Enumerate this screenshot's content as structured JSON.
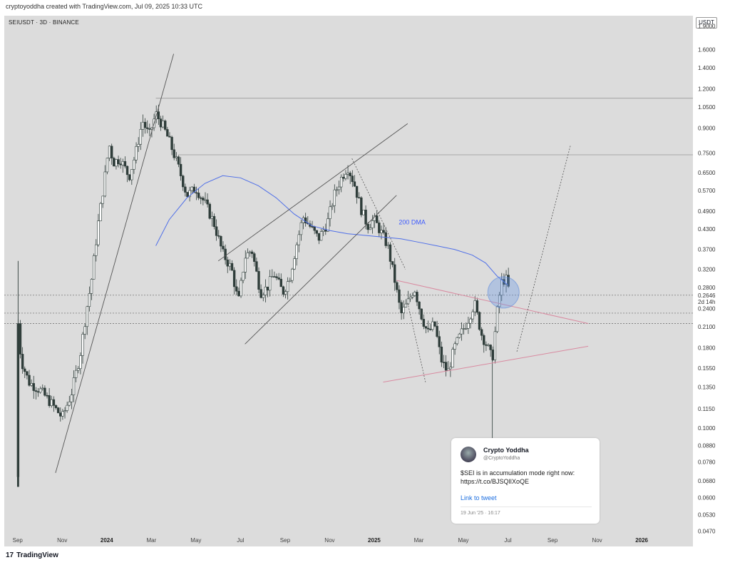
{
  "header": {
    "created_by": "cryptoyoddha created with TradingView.com, Jul 09, 2025 10:33 UTC",
    "symbol": "SEIUSDT · 3D · BINANCE",
    "currency_button": "USDT"
  },
  "footer": {
    "logo_text": "17",
    "brand": "TradingView"
  },
  "chart_data": {
    "type": "candlestick",
    "title": "",
    "y_scale": "log",
    "ylim": [
      0.042,
      2.05
    ],
    "y_ticks": [
      {
        "v": 1.9,
        "label": "1.9000"
      },
      {
        "v": 1.6,
        "label": "1.6000"
      },
      {
        "v": 1.4,
        "label": "1.4000"
      },
      {
        "v": 1.2,
        "label": "1.2000"
      },
      {
        "v": 1.05,
        "label": "1.0500"
      },
      {
        "v": 0.9,
        "label": "0.9000"
      },
      {
        "v": 0.75,
        "label": "0.7500"
      },
      {
        "v": 0.65,
        "label": "0.6500"
      },
      {
        "v": 0.57,
        "label": "0.5700"
      },
      {
        "v": 0.49,
        "label": "0.4900"
      },
      {
        "v": 0.43,
        "label": "0.4300"
      },
      {
        "v": 0.37,
        "label": "0.3700"
      },
      {
        "v": 0.32,
        "label": "0.3200"
      },
      {
        "v": 0.28,
        "label": "0.2800"
      },
      {
        "v": 0.2646,
        "label": "0.2646"
      },
      {
        "v": 0.24,
        "label": "0.2400"
      },
      {
        "v": 0.21,
        "label": "0.2100"
      },
      {
        "v": 0.18,
        "label": "0.1800"
      },
      {
        "v": 0.155,
        "label": "0.1550"
      },
      {
        "v": 0.135,
        "label": "0.1350"
      },
      {
        "v": 0.115,
        "label": "0.1150"
      },
      {
        "v": 0.1,
        "label": "0.1000"
      },
      {
        "v": 0.088,
        "label": "0.0880"
      },
      {
        "v": 0.078,
        "label": "0.0780"
      },
      {
        "v": 0.068,
        "label": "0.0680"
      },
      {
        "v": 0.06,
        "label": "0.0600"
      },
      {
        "v": 0.053,
        "label": "0.0530"
      },
      {
        "v": 0.047,
        "label": "0.0470"
      }
    ],
    "current_price": "0.2646",
    "countdown": "2d 14h",
    "x_ticks": [
      {
        "label": "Sep",
        "m": 0,
        "bold": false
      },
      {
        "label": "Nov",
        "m": 2,
        "bold": false
      },
      {
        "label": "2024",
        "m": 4,
        "bold": true
      },
      {
        "label": "Mar",
        "m": 6,
        "bold": false
      },
      {
        "label": "May",
        "m": 8,
        "bold": false
      },
      {
        "label": "Jul",
        "m": 10,
        "bold": false
      },
      {
        "label": "Sep",
        "m": 12,
        "bold": false
      },
      {
        "label": "Nov",
        "m": 14,
        "bold": false
      },
      {
        "label": "2025",
        "m": 16,
        "bold": true
      },
      {
        "label": "Mar",
        "m": 18,
        "bold": false
      },
      {
        "label": "May",
        "m": 20,
        "bold": false
      },
      {
        "label": "Jul",
        "m": 22,
        "bold": false
      },
      {
        "label": "Sep",
        "m": 24,
        "bold": false
      },
      {
        "label": "Nov",
        "m": 26,
        "bold": false
      },
      {
        "label": "2026",
        "m": 28,
        "bold": true
      }
    ],
    "x_range_months": [
      -0.6,
      30.3
    ],
    "price_path": [
      [
        0,
        0.07
      ],
      [
        0.02,
        0.215
      ],
      [
        0.15,
        0.165
      ],
      [
        0.5,
        0.14
      ],
      [
        1.0,
        0.132
      ],
      [
        1.5,
        0.12
      ],
      [
        2.0,
        0.108
      ],
      [
        2.4,
        0.128
      ],
      [
        2.8,
        0.17
      ],
      [
        3.1,
        0.24
      ],
      [
        3.3,
        0.29
      ],
      [
        3.6,
        0.44
      ],
      [
        3.9,
        0.62
      ],
      [
        4.1,
        0.8
      ],
      [
        4.3,
        0.7
      ],
      [
        4.6,
        0.72
      ],
      [
        5.0,
        0.63
      ],
      [
        5.3,
        0.75
      ],
      [
        5.6,
        0.95
      ],
      [
        5.9,
        0.85
      ],
      [
        6.2,
        1.0
      ],
      [
        6.5,
        0.92
      ],
      [
        6.8,
        0.82
      ],
      [
        7.2,
        0.68
      ],
      [
        7.6,
        0.55
      ],
      [
        8.0,
        0.58
      ],
      [
        8.4,
        0.52
      ],
      [
        8.8,
        0.45
      ],
      [
        9.2,
        0.36
      ],
      [
        9.6,
        0.32
      ],
      [
        9.9,
        0.25
      ],
      [
        10.2,
        0.35
      ],
      [
        10.5,
        0.37
      ],
      [
        10.9,
        0.27
      ],
      [
        11.2,
        0.28
      ],
      [
        11.5,
        0.31
      ],
      [
        11.9,
        0.27
      ],
      [
        12.2,
        0.3
      ],
      [
        12.5,
        0.38
      ],
      [
        12.8,
        0.47
      ],
      [
        13.1,
        0.44
      ],
      [
        13.5,
        0.4
      ],
      [
        13.9,
        0.45
      ],
      [
        14.2,
        0.55
      ],
      [
        14.5,
        0.62
      ],
      [
        14.8,
        0.68
      ],
      [
        15.1,
        0.6
      ],
      [
        15.4,
        0.5
      ],
      [
        15.7,
        0.44
      ],
      [
        16.0,
        0.46
      ],
      [
        16.3,
        0.42
      ],
      [
        16.6,
        0.38
      ],
      [
        16.9,
        0.3
      ],
      [
        17.2,
        0.23
      ],
      [
        17.5,
        0.25
      ],
      [
        17.8,
        0.28
      ],
      [
        18.1,
        0.23
      ],
      [
        18.4,
        0.2
      ],
      [
        18.7,
        0.215
      ],
      [
        19.0,
        0.165
      ],
      [
        19.3,
        0.15
      ],
      [
        19.6,
        0.18
      ],
      [
        19.9,
        0.2
      ],
      [
        20.2,
        0.22
      ],
      [
        20.5,
        0.25
      ],
      [
        20.8,
        0.2
      ],
      [
        21.1,
        0.18
      ],
      [
        21.3,
        0.165
      ],
      [
        21.5,
        0.23
      ],
      [
        21.7,
        0.29
      ],
      [
        21.9,
        0.3
      ],
      [
        22.1,
        0.265
      ]
    ],
    "dma_200": [
      [
        6.2,
        0.38
      ],
      [
        6.8,
        0.46
      ],
      [
        7.6,
        0.54
      ],
      [
        8.4,
        0.6
      ],
      [
        9.2,
        0.635
      ],
      [
        10.0,
        0.625
      ],
      [
        10.8,
        0.59
      ],
      [
        11.6,
        0.54
      ],
      [
        12.4,
        0.48
      ],
      [
        13.2,
        0.44
      ],
      [
        14.0,
        0.425
      ],
      [
        14.8,
        0.415
      ],
      [
        15.6,
        0.41
      ],
      [
        16.4,
        0.405
      ],
      [
        17.2,
        0.4
      ],
      [
        18.0,
        0.39
      ],
      [
        18.8,
        0.38
      ],
      [
        19.6,
        0.37
      ],
      [
        20.4,
        0.355
      ],
      [
        21.0,
        0.335
      ],
      [
        21.5,
        0.305
      ],
      [
        22.0,
        0.285
      ]
    ],
    "annotations": {
      "dma_label": "200 DMA"
    }
  },
  "tweet": {
    "name": "Crypto Yoddha",
    "handle": "@CryptoYoddha",
    "text": "$SEI is in accumulation mode right now: https://t.co/BJSQlIXoQE",
    "link_label": "Link to tweet",
    "date": "19 Jun '25 · 16:17"
  }
}
